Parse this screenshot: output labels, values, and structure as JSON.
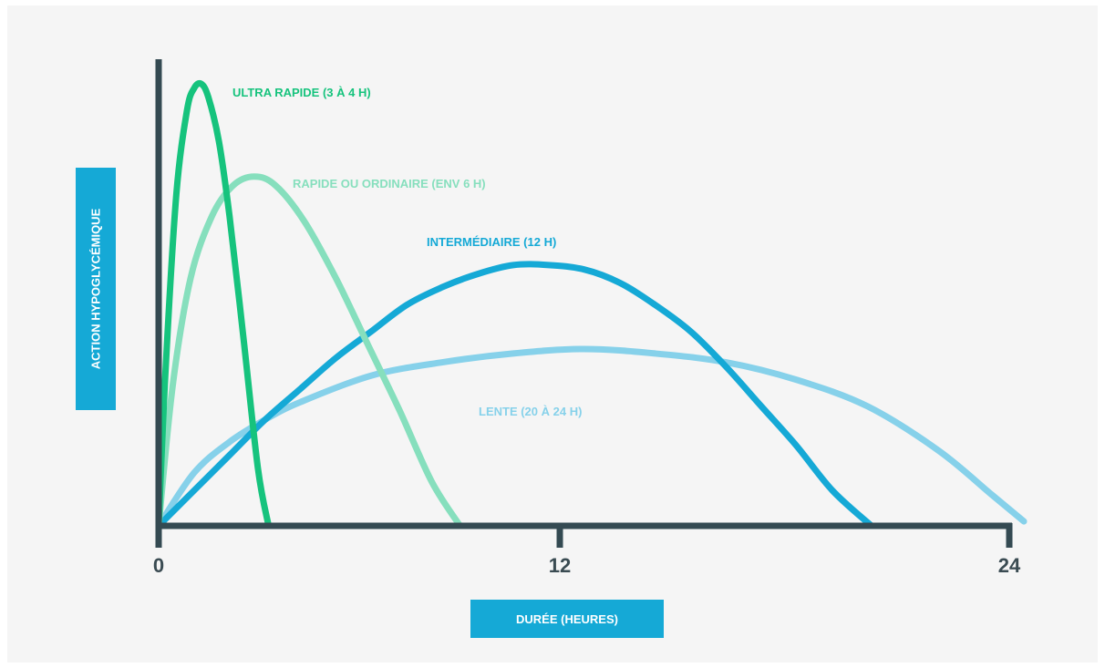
{
  "chart_data": {
    "type": "line",
    "ylabel": "ACTION HYPOGLYCÉMIQUE",
    "xlabel": "DURÉE (HEURES)",
    "xlim": [
      0,
      24.4
    ],
    "ylim": [
      0,
      1.0
    ],
    "x_ticks": [
      0,
      12,
      24
    ],
    "x_tick_labels": [
      "0",
      "12",
      "24"
    ],
    "grid": false,
    "legend": "none",
    "colors": {
      "axis": "#344a52",
      "label_box": "#15a9d6",
      "ultra": "#16c37d",
      "rapide": "#86dfbd",
      "intermediaire": "#15a9d6",
      "lente": "#86d1ea"
    },
    "series": [
      {
        "name": "ULTRA RAPIDE (3 À 4 H)",
        "color": "#16c37d",
        "x": [
          0,
          0.2,
          0.5,
          0.8,
          1.0,
          1.2,
          1.4,
          1.7,
          2.0,
          2.4,
          2.8,
          3.1
        ],
        "y": [
          0,
          0.36,
          0.75,
          0.94,
          0.99,
          1.0,
          0.97,
          0.87,
          0.7,
          0.42,
          0.13,
          0
        ]
      },
      {
        "name": "RAPIDE OU ORDINAIRE (ENV 6 H)",
        "color": "#86dfbd",
        "x": [
          0,
          0.4,
          0.9,
          1.5,
          2.1,
          2.7,
          3.3,
          4.1,
          5.0,
          5.9,
          6.8,
          7.7,
          8.5
        ],
        "y": [
          0,
          0.32,
          0.56,
          0.7,
          0.77,
          0.79,
          0.77,
          0.69,
          0.56,
          0.41,
          0.26,
          0.1,
          0
        ]
      },
      {
        "name": "INTERMÉDIAIRE (12 H)",
        "color": "#15a9d6",
        "x": [
          0,
          1,
          2,
          3,
          4,
          5,
          6,
          7,
          8,
          9,
          10,
          11,
          12,
          13,
          14,
          15,
          16,
          17,
          18,
          19,
          20.1
        ],
        "y": [
          0,
          0.08,
          0.16,
          0.24,
          0.31,
          0.38,
          0.44,
          0.5,
          0.54,
          0.57,
          0.59,
          0.59,
          0.58,
          0.55,
          0.5,
          0.44,
          0.36,
          0.27,
          0.18,
          0.08,
          0
        ]
      },
      {
        "name": "LENTE (20 À 24 H)",
        "color": "#86d1ea",
        "x": [
          0,
          1,
          2,
          3,
          4,
          6,
          8,
          10,
          12,
          14,
          16,
          18,
          20,
          22,
          23.5,
          24.4
        ],
        "y": [
          0,
          0.12,
          0.19,
          0.24,
          0.28,
          0.34,
          0.37,
          0.39,
          0.4,
          0.39,
          0.37,
          0.33,
          0.27,
          0.17,
          0.07,
          0.01
        ]
      }
    ]
  }
}
